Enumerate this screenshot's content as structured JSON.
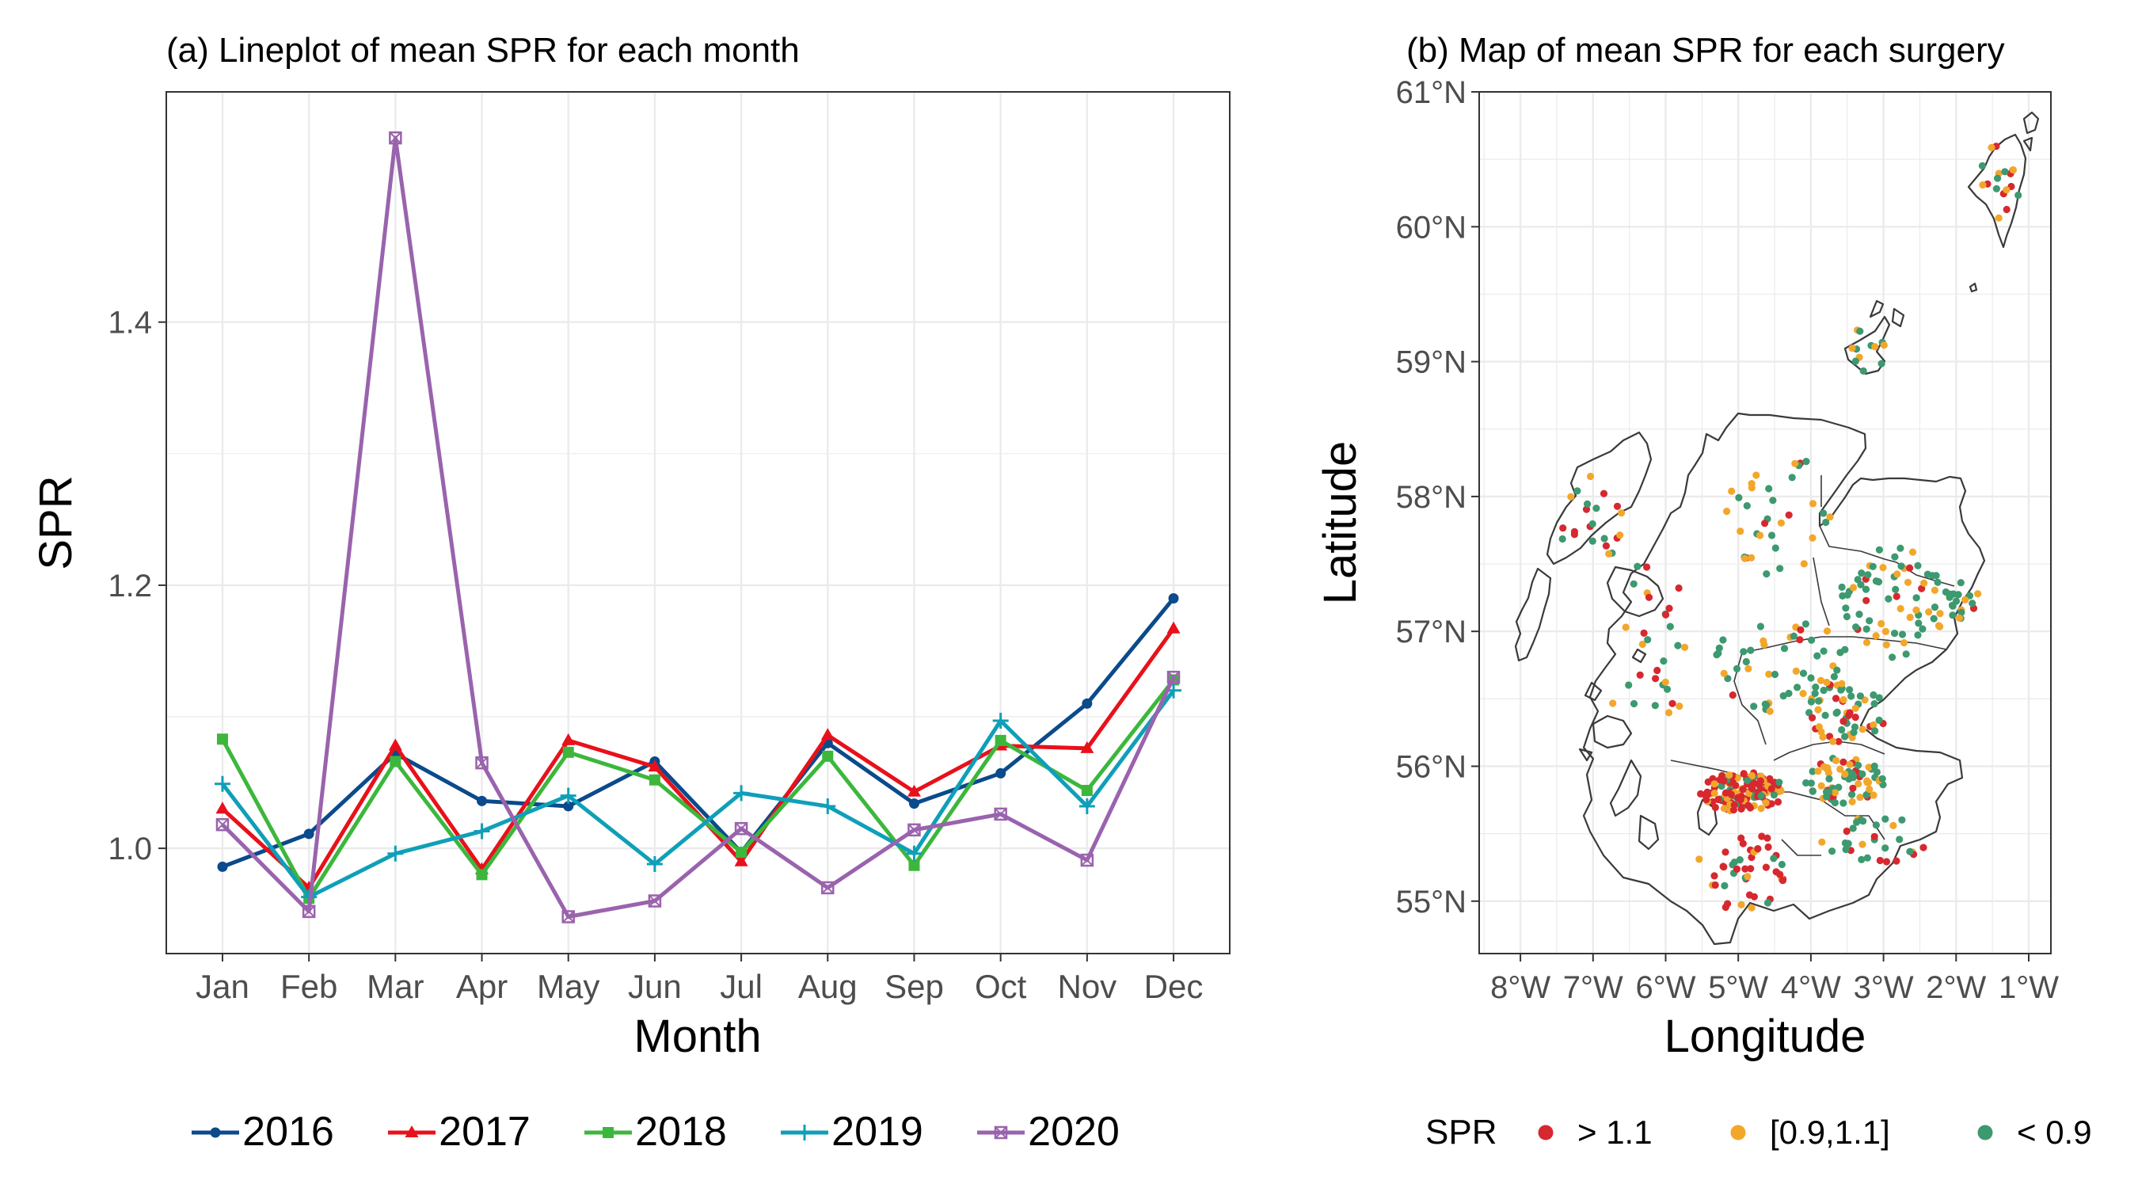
{
  "chart_data": [
    {
      "type": "line",
      "title": "(a) Lineplot of mean SPR for each month",
      "xlabel": "Month",
      "ylabel": "SPR",
      "categories": [
        "Jan",
        "Feb",
        "Mar",
        "Apr",
        "May",
        "Jun",
        "Jul",
        "Aug",
        "Sep",
        "Oct",
        "Nov",
        "Dec"
      ],
      "ylim": [
        0.92,
        1.575
      ],
      "yticks": [
        1.0,
        1.2,
        1.4
      ],
      "ytick_labels": [
        "1.0",
        "1.2",
        "1.4"
      ],
      "grid": true,
      "legend_position": "bottom",
      "series": [
        {
          "name": "2016",
          "color": "#0b4a8b",
          "marker": "circle",
          "values": [
            0.986,
            1.011,
            1.072,
            1.036,
            1.032,
            1.066,
            0.997,
            1.08,
            1.034,
            1.057,
            1.11,
            1.19
          ]
        },
        {
          "name": "2017",
          "color": "#e8111b",
          "marker": "triangle",
          "values": [
            1.03,
            0.97,
            1.078,
            0.984,
            1.082,
            1.062,
            0.99,
            1.086,
            1.043,
            1.078,
            1.076,
            1.167
          ]
        },
        {
          "name": "2018",
          "color": "#3cb73c",
          "marker": "square",
          "values": [
            1.083,
            0.962,
            1.066,
            0.98,
            1.073,
            1.052,
            0.997,
            1.07,
            0.987,
            1.082,
            1.044,
            1.128
          ]
        },
        {
          "name": "2019",
          "color": "#0f9fb8",
          "marker": "plus",
          "values": [
            1.049,
            0.963,
            0.996,
            1.013,
            1.04,
            0.988,
            1.042,
            1.032,
            0.996,
            1.097,
            1.032,
            1.12
          ]
        },
        {
          "name": "2020",
          "color": "#9a63ad",
          "marker": "square-x",
          "values": [
            1.018,
            0.952,
            1.54,
            1.065,
            0.948,
            0.96,
            1.015,
            0.97,
            1.014,
            1.026,
            0.991,
            1.13
          ]
        }
      ]
    },
    {
      "type": "scatter",
      "title": "(b) Map of mean SPR for each surgery",
      "xlabel": "Longitude",
      "ylabel": "Latitude",
      "xlim": [
        -8.5,
        -0.5
      ],
      "ylim": [
        54.6,
        61.0
      ],
      "xtick_labels": [
        "8°W",
        "7°W",
        "6°W",
        "5°W",
        "4°W",
        "3°W",
        "2°W",
        "1°W"
      ],
      "ytick_labels": [
        "55°N",
        "56°N",
        "57°N",
        "58°N",
        "59°N",
        "60°N",
        "61°N"
      ],
      "grid": true,
      "legend_title": "SPR",
      "legend_position": "bottom",
      "categories": [
        {
          "label": "> 1.1",
          "color": "#d7282f"
        },
        {
          "label": "[0.9,1.1]",
          "color": "#f2a72b"
        },
        {
          "label": "< 0.9",
          "color": "#3d9970"
        }
      ]
    }
  ]
}
